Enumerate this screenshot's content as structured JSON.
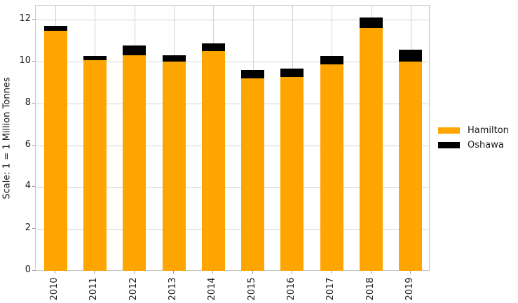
{
  "chart_data": {
    "type": "bar",
    "stacked": true,
    "title": "",
    "xlabel": "",
    "ylabel": "Scale: 1 = 1 Million Tonnes",
    "categories": [
      "2010",
      "2011",
      "2012",
      "2013",
      "2014",
      "2015",
      "2016",
      "2017",
      "2018",
      "2019"
    ],
    "series": [
      {
        "name": "Hamilton",
        "color": "#FFA500",
        "values": [
          11.45,
          10.05,
          10.3,
          10.0,
          10.5,
          9.2,
          9.25,
          9.85,
          11.6,
          10.0
        ]
      },
      {
        "name": "Oshawa",
        "color": "#000000",
        "values": [
          0.25,
          0.2,
          0.45,
          0.3,
          0.35,
          0.4,
          0.4,
          0.4,
          0.5,
          0.55
        ]
      }
    ],
    "yticks": [
      0,
      2,
      4,
      6,
      8,
      10,
      12
    ],
    "ylim": [
      0,
      12.7
    ],
    "grid": true,
    "grid_color": "#d2d2d2",
    "spine_color": "#c6c6c6",
    "legend_position": "center-right"
  }
}
